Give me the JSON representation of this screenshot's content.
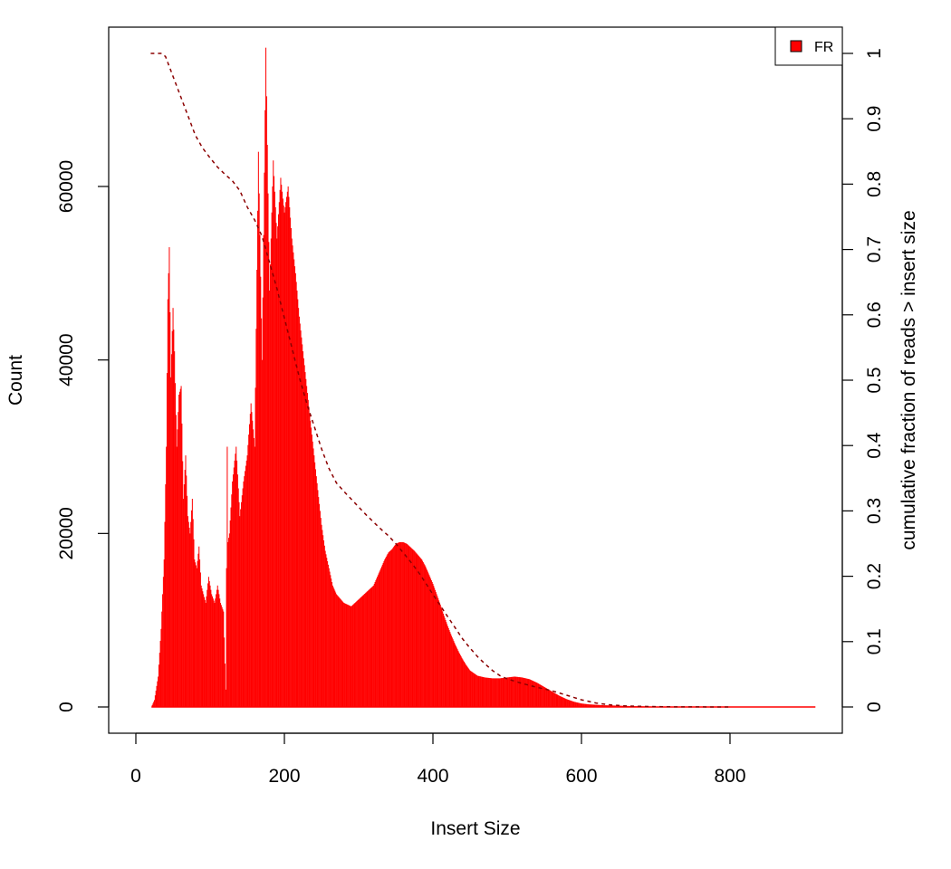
{
  "chart_data": {
    "type": "area",
    "xlabel": "Insert Size",
    "ylabel": "Count",
    "y2label": "cumulative fraction of reads > insert size",
    "xlim": [
      0,
      940
    ],
    "ylim": [
      0,
      75500
    ],
    "y2lim": [
      0,
      1
    ],
    "x_ticks": [
      0,
      200,
      400,
      600,
      800
    ],
    "y_ticks": [
      0,
      20000,
      40000,
      60000
    ],
    "y2_ticks": [
      0,
      0.1,
      0.2,
      0.3,
      0.4,
      0.5,
      0.6,
      0.7,
      0.8,
      0.9,
      1
    ],
    "legend": {
      "position": "top-right",
      "entries": [
        {
          "label": "FR",
          "color": "#ff0000"
        }
      ]
    },
    "series": [
      {
        "name": "FR",
        "type": "histogram",
        "color": "#ff0000",
        "x": [
          21,
          25,
          30,
          34,
          38,
          41,
          43,
          45,
          47,
          50,
          52,
          55,
          58,
          61,
          64,
          67,
          70,
          73,
          76,
          79,
          82,
          85,
          88,
          91,
          94,
          98,
          102,
          106,
          110,
          114,
          118,
          121,
          123,
          124,
          126,
          130,
          135,
          140,
          145,
          150,
          155,
          160,
          165,
          170,
          175,
          180,
          185,
          190,
          195,
          200,
          205,
          210,
          215,
          220,
          225,
          230,
          235,
          240,
          245,
          250,
          255,
          260,
          265,
          270,
          275,
          280,
          285,
          290,
          295,
          300,
          305,
          310,
          315,
          320,
          325,
          330,
          335,
          340,
          345,
          350,
          355,
          360,
          365,
          370,
          375,
          380,
          385,
          390,
          395,
          400,
          405,
          410,
          415,
          420,
          425,
          430,
          435,
          440,
          445,
          450,
          460,
          470,
          480,
          490,
          500,
          510,
          520,
          530,
          540,
          550,
          560,
          570,
          580,
          590,
          600,
          610,
          620,
          630,
          640,
          650,
          660,
          670,
          680,
          690,
          700,
          720,
          740,
          760,
          780,
          800,
          820,
          840,
          860,
          880,
          900,
          915
        ],
        "values": [
          0,
          800,
          3500,
          9000,
          17000,
          30000,
          47000,
          53000,
          38000,
          46000,
          41000,
          30000,
          36000,
          37000,
          24000,
          29000,
          22000,
          20000,
          24000,
          17000,
          16000,
          18500,
          14000,
          13000,
          12000,
          15000,
          13000,
          12000,
          14000,
          12000,
          11000,
          2000,
          30000,
          19000,
          20000,
          26000,
          30000,
          22000,
          26000,
          29000,
          35000,
          30000,
          64000,
          40000,
          76000,
          48000,
          63000,
          54000,
          61000,
          57000,
          60000,
          54000,
          50000,
          45000,
          41000,
          37000,
          33000,
          29000,
          25000,
          21000,
          18000,
          16000,
          14000,
          13000,
          12500,
          12000,
          11800,
          11600,
          12000,
          12400,
          12800,
          13200,
          13600,
          14000,
          15000,
          16000,
          17000,
          17800,
          18200,
          18800,
          19000,
          19000,
          18800,
          18400,
          18000,
          17500,
          17000,
          16200,
          15200,
          14200,
          13000,
          11800,
          10500,
          9300,
          8200,
          7200,
          6300,
          5500,
          4800,
          4200,
          3600,
          3400,
          3300,
          3300,
          3400,
          3500,
          3400,
          3200,
          2800,
          2300,
          1800,
          1300,
          900,
          600,
          400,
          300,
          250,
          200,
          180,
          150,
          120,
          100,
          80,
          60,
          50,
          40,
          30,
          25,
          20,
          15,
          10,
          8,
          5,
          3,
          2,
          0
        ]
      },
      {
        "name": "cumulative fraction",
        "type": "line",
        "axis": "y2",
        "style": "dashed",
        "color": "#8b0000",
        "x": [
          20,
          35,
          40,
          50,
          60,
          70,
          80,
          90,
          100,
          110,
          120,
          130,
          140,
          150,
          160,
          170,
          180,
          190,
          200,
          210,
          220,
          230,
          240,
          250,
          260,
          270,
          280,
          290,
          300,
          310,
          320,
          330,
          340,
          350,
          360,
          370,
          380,
          390,
          400,
          410,
          420,
          430,
          440,
          450,
          460,
          470,
          480,
          490,
          500,
          520,
          540,
          560,
          580,
          600,
          620,
          640,
          660,
          680,
          700,
          720,
          740,
          760,
          780,
          800
        ],
        "values": [
          1.0,
          1.0,
          0.995,
          0.965,
          0.935,
          0.905,
          0.875,
          0.855,
          0.84,
          0.826,
          0.815,
          0.805,
          0.79,
          0.765,
          0.745,
          0.72,
          0.68,
          0.64,
          0.595,
          0.55,
          0.505,
          0.465,
          0.43,
          0.395,
          0.365,
          0.343,
          0.33,
          0.318,
          0.306,
          0.294,
          0.283,
          0.272,
          0.262,
          0.25,
          0.236,
          0.222,
          0.207,
          0.19,
          0.172,
          0.155,
          0.138,
          0.121,
          0.104,
          0.09,
          0.077,
          0.066,
          0.056,
          0.048,
          0.043,
          0.036,
          0.03,
          0.025,
          0.018,
          0.011,
          0.006,
          0.003,
          0.0015,
          0.001,
          0.0005,
          0.0003,
          0.0002,
          0.0001,
          5e-05,
          0
        ]
      }
    ]
  }
}
